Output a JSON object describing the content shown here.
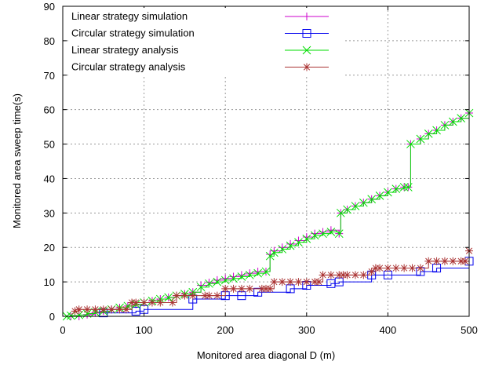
{
  "chart_data": {
    "type": "line",
    "xlabel": "Monitored area diagonal D (m)",
    "ylabel": "Monitored area sweep time(s)",
    "xlim": [
      0,
      500
    ],
    "ylim": [
      0,
      90
    ],
    "xticks": [
      "0",
      "100",
      "200",
      "300",
      "400",
      "500"
    ],
    "yticks": [
      "0",
      "10",
      "20",
      "30",
      "40",
      "50",
      "60",
      "70",
      "80",
      "90"
    ],
    "grid": true,
    "legend_position": "top-left",
    "series": [
      {
        "name": "Linear strategy simulation",
        "color": "#cc00cc",
        "marker": "plus",
        "x": [
          10,
          20,
          30,
          40,
          50,
          60,
          70,
          80,
          90,
          100,
          110,
          120,
          130,
          140,
          150,
          160,
          170,
          180,
          190,
          200,
          210,
          220,
          230,
          240,
          250,
          255,
          260,
          270,
          280,
          290,
          300,
          310,
          320,
          330,
          340,
          342,
          350,
          360,
          370,
          380,
          390,
          400,
          410,
          420,
          425,
          428,
          440,
          450,
          460,
          470,
          480,
          490,
          500
        ],
        "y": [
          0,
          0,
          0.5,
          1,
          1.5,
          2,
          2.5,
          3,
          3.5,
          4,
          4.5,
          5,
          5.5,
          6,
          6.5,
          7,
          9,
          9.8,
          10.5,
          11,
          11.5,
          12,
          12.5,
          13,
          13,
          18,
          19,
          20,
          21,
          22,
          23,
          24,
          24.5,
          25,
          24,
          30,
          31,
          32,
          33,
          34,
          35,
          36,
          37,
          37.5,
          37.5,
          50,
          51.5,
          53,
          54,
          55.5,
          56.5,
          57.5,
          59
        ]
      },
      {
        "name": "Circular strategy simulation",
        "color": "#0000ee",
        "marker": "square",
        "x": [
          50,
          90,
          100,
          160,
          200,
          220,
          240,
          280,
          300,
          330,
          340,
          380,
          400,
          440,
          460,
          500
        ],
        "y": [
          1,
          1.5,
          2,
          5,
          6,
          6,
          7,
          8,
          9,
          9.5,
          10,
          12,
          12,
          13,
          14,
          16
        ]
      },
      {
        "name": "Linear strategy analysis",
        "color": "#00dd00",
        "marker": "x",
        "x": [
          5,
          10,
          20,
          30,
          40,
          50,
          60,
          70,
          80,
          90,
          100,
          110,
          120,
          130,
          140,
          150,
          160,
          170,
          180,
          190,
          200,
          210,
          220,
          230,
          240,
          250,
          255,
          260,
          270,
          280,
          290,
          300,
          310,
          320,
          330,
          340,
          342,
          350,
          360,
          370,
          380,
          390,
          400,
          410,
          420,
          425,
          428,
          440,
          450,
          460,
          470,
          480,
          490,
          500
        ],
        "y": [
          0,
          0.2,
          0.4,
          0.8,
          1.2,
          1.5,
          2,
          2.5,
          3,
          3.5,
          4,
          4.5,
          5,
          5.5,
          6,
          6.5,
          7,
          8.5,
          9.5,
          10,
          10.5,
          11,
          11.5,
          12,
          12.5,
          13,
          17.5,
          18.5,
          19.5,
          20.5,
          21.5,
          22.5,
          23.5,
          24,
          24.5,
          24,
          30,
          31,
          32,
          33,
          34,
          35,
          36,
          37,
          37.5,
          37.5,
          50,
          51.5,
          53,
          54,
          55.5,
          56.5,
          57.5,
          59
        ]
      },
      {
        "name": "Circular strategy analysis",
        "color": "#aa3333",
        "marker": "star",
        "x": [
          15,
          20,
          30,
          40,
          50,
          60,
          70,
          78,
          85,
          90,
          100,
          110,
          120,
          135,
          140,
          150,
          160,
          175,
          180,
          190,
          200,
          210,
          220,
          230,
          245,
          250,
          255,
          260,
          270,
          280,
          290,
          300,
          310,
          315,
          320,
          330,
          340,
          345,
          350,
          360,
          370,
          380,
          385,
          390,
          400,
          410,
          420,
          430,
          440,
          450,
          460,
          470,
          480,
          490,
          495,
          500
        ],
        "y": [
          1.5,
          2,
          2,
          2,
          2,
          2,
          2,
          2,
          4,
          4,
          4,
          4,
          4,
          4,
          6,
          6,
          6,
          6,
          6,
          6,
          8,
          8,
          8,
          8,
          8,
          8,
          8,
          10,
          10,
          10,
          10,
          10,
          10,
          10,
          12,
          12,
          12,
          12,
          12,
          12,
          12,
          13,
          14,
          14,
          14,
          14,
          14,
          14,
          14,
          16,
          16,
          16,
          16,
          16,
          16,
          19
        ]
      }
    ]
  }
}
